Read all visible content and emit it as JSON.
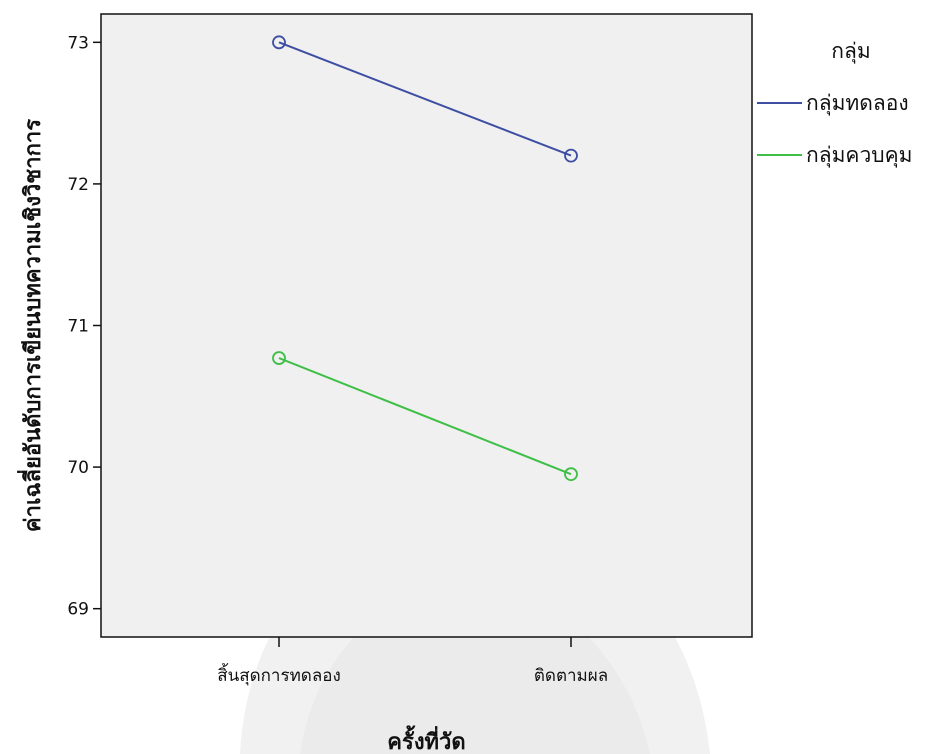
{
  "chart_data": {
    "type": "line",
    "title": "",
    "xlabel": "ครั้งที่วัด",
    "ylabel": "ค่าเฉลี่ยอันดับการเขียนบทความเชิงวิชาการ",
    "categories": [
      "สิ้นสุดการทดลอง",
      "ติดตามผล"
    ],
    "ylim": [
      68.8,
      73.2
    ],
    "yticks": [
      69,
      70,
      71,
      72,
      73
    ],
    "grid": false,
    "legend_title": "กลุ่ม",
    "legend_position": "right",
    "series": [
      {
        "name": "กลุ่มทดลอง",
        "values": [
          73.0,
          72.2
        ],
        "color": "#3d4ea3"
      },
      {
        "name": "กลุ่มควบคุม",
        "values": [
          70.77,
          69.95
        ],
        "color": "#3fbf48"
      }
    ],
    "plot_background": "#f0f0f0"
  }
}
